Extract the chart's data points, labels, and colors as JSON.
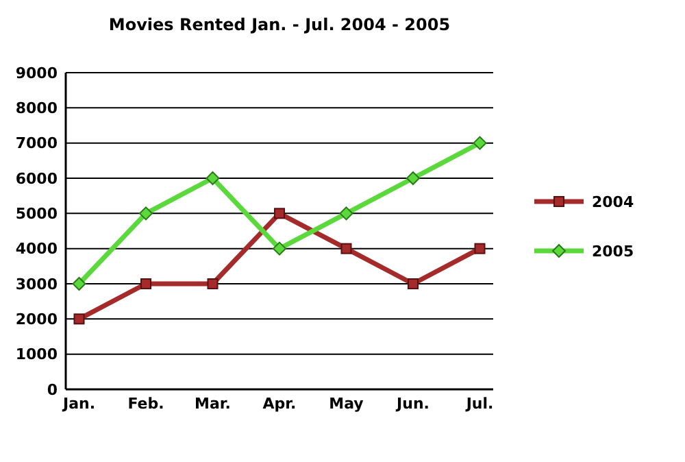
{
  "chart_data": {
    "type": "line",
    "title": "Movies Rented Jan. - Jul. 2004 - 2005",
    "categories": [
      "Jan.",
      "Feb.",
      "Mar.",
      "Apr.",
      "May",
      "Jun.",
      "Jul."
    ],
    "series": [
      {
        "name": "2004",
        "color": "#a52a2a",
        "marker": "square",
        "values": [
          2000,
          3000,
          3000,
          5000,
          4000,
          3000,
          4000
        ]
      },
      {
        "name": "2005",
        "color": "#5ad83c",
        "marker": "diamond",
        "values": [
          3000,
          5000,
          6000,
          4000,
          5000,
          6000,
          7000
        ]
      }
    ],
    "ylim": [
      0,
      9000
    ],
    "yticks": [
      0,
      1000,
      2000,
      3000,
      4000,
      5000,
      6000,
      7000,
      8000,
      9000
    ],
    "grid": "y",
    "legend": "right",
    "line_style": "solid"
  }
}
